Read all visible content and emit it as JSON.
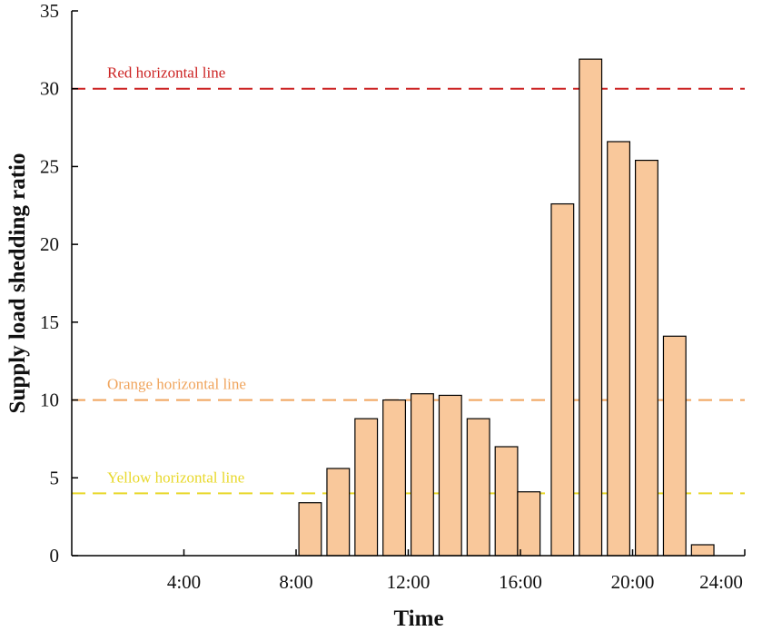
{
  "chart_data": {
    "type": "bar",
    "title": "",
    "xlabel": "Time",
    "ylabel": "Supply load shedding ratio",
    "xlim": [
      0,
      24
    ],
    "ylim": [
      0,
      35
    ],
    "x_ticks": [
      4,
      8,
      12,
      16,
      20,
      24
    ],
    "x_tick_labels": [
      "4:00",
      "8:00",
      "12:00",
      "16:00",
      "20:00",
      "24:00"
    ],
    "y_ticks": [
      0,
      5,
      10,
      15,
      20,
      25,
      30,
      35
    ],
    "y_tick_labels": [
      "0",
      "5",
      "10",
      "15",
      "20",
      "25",
      "30",
      "35"
    ],
    "bar_color": "#f9c89b",
    "bar_edge_color": "#000000",
    "bar_width_hours": 0.8,
    "bars": [
      {
        "x": 8.5,
        "value": 3.4
      },
      {
        "x": 9.5,
        "value": 5.6
      },
      {
        "x": 10.5,
        "value": 8.8
      },
      {
        "x": 11.5,
        "value": 10.0
      },
      {
        "x": 12.5,
        "value": 10.4
      },
      {
        "x": 13.5,
        "value": 10.3
      },
      {
        "x": 14.5,
        "value": 8.8
      },
      {
        "x": 15.5,
        "value": 7.0
      },
      {
        "x": 16.3,
        "value": 4.1
      },
      {
        "x": 17.5,
        "value": 22.6
      },
      {
        "x": 18.5,
        "value": 31.9
      },
      {
        "x": 19.5,
        "value": 26.6
      },
      {
        "x": 20.5,
        "value": 25.4
      },
      {
        "x": 21.5,
        "value": 14.1
      },
      {
        "x": 22.5,
        "value": 0.7
      }
    ],
    "reference_lines": [
      {
        "name": "red",
        "label": "Red horizontal line",
        "value": 30,
        "color": "#cc2222"
      },
      {
        "name": "orange",
        "label": "Orange horizontal line",
        "value": 10,
        "color": "#f0a45c"
      },
      {
        "name": "yellow",
        "label": "Yellow horizontal line",
        "value": 4,
        "color": "#e8d82a"
      }
    ]
  }
}
